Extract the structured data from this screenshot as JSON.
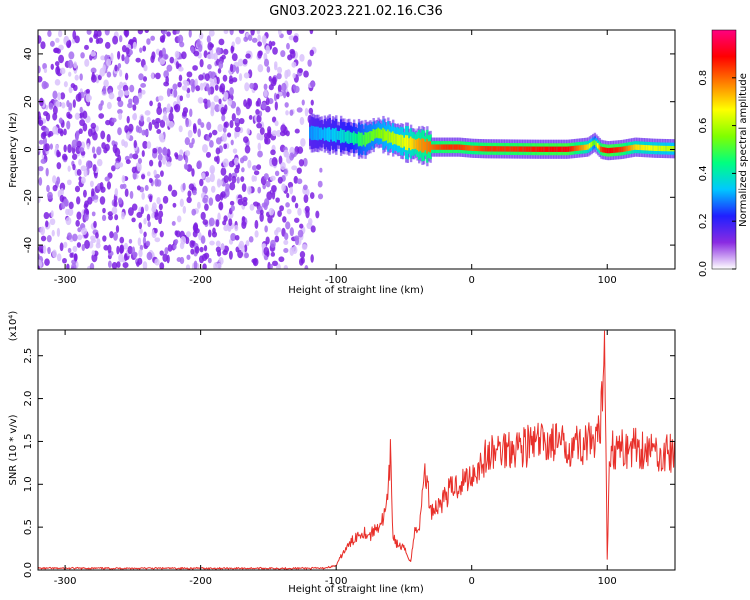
{
  "figure": {
    "title": "GN03.2023.221.02.16.C36"
  },
  "chart_data": [
    {
      "type": "heatmap",
      "title": "GN03.2023.221.02.16.C36",
      "xlabel": "Height of straight line (km)",
      "ylabel": "Frequency (Hz)",
      "xlim": [
        -320,
        150
      ],
      "ylim": [
        -50,
        50
      ],
      "x_ticks": [
        -300,
        -200,
        -100,
        0,
        100
      ],
      "x_tick_labels": [
        "-300",
        "-200",
        "-100",
        "0",
        "100"
      ],
      "y_ticks": [
        -40,
        -20,
        0,
        20,
        40
      ],
      "y_tick_labels": [
        "-40",
        "-20",
        "0",
        "20",
        "40"
      ],
      "noise_region_x": [
        -320,
        -110
      ],
      "signal_band": {
        "x": [
          -120,
          -100,
          -90,
          -80,
          -70,
          -60,
          -50,
          -40,
          -30,
          -20,
          -10,
          0,
          10,
          30,
          50,
          70,
          85,
          90,
          95,
          100,
          110,
          120,
          135,
          150
        ],
        "center_freq": [
          7,
          6,
          5,
          4,
          7,
          5,
          3,
          2,
          1,
          1,
          1,
          0.5,
          0.3,
          0.2,
          0.1,
          0.1,
          1,
          3,
          0,
          -0.5,
          0,
          1,
          0.5,
          0.3
        ],
        "relative_amplitude": [
          0.3,
          0.35,
          0.4,
          0.5,
          0.55,
          0.6,
          0.65,
          0.75,
          0.8,
          0.85,
          0.85,
          0.8,
          0.85,
          0.85,
          0.88,
          0.9,
          0.7,
          0.5,
          0.85,
          0.9,
          0.85,
          0.7,
          0.65,
          0.6
        ]
      },
      "colorbar": {
        "label": "Normalized spectral amplitude",
        "range": [
          0.0,
          1.0
        ],
        "ticks": [
          0.0,
          0.2,
          0.4,
          0.6,
          0.8
        ],
        "tick_labels": [
          "0.0",
          "0.2",
          "0.4",
          "0.6",
          "0.8"
        ],
        "colors": [
          "#ffffff",
          "#8a2be2",
          "#2020ff",
          "#00c8ff",
          "#00ff80",
          "#80ff00",
          "#ffff00",
          "#ff8000",
          "#ff0000",
          "#ff0080"
        ]
      }
    },
    {
      "type": "line",
      "xlabel": "Height of straight line (km)",
      "ylabel": "SNR (10 * v/v)",
      "y_multiplier_label": "(x10⁴)",
      "xlim": [
        -320,
        150
      ],
      "ylim": [
        0,
        2.8
      ],
      "x_ticks": [
        -300,
        -200,
        -100,
        0,
        100
      ],
      "x_tick_labels": [
        "-300",
        "-200",
        "-100",
        "0",
        "100"
      ],
      "y_ticks": [
        0,
        0.5,
        1.0,
        1.5,
        2.0,
        2.5
      ],
      "y_tick_labels": [
        "0.0",
        "0.5",
        "1.0",
        "1.5",
        "2.0",
        "2.5"
      ],
      "grid": false,
      "series": [
        {
          "color": "#e8302a",
          "x": [
            -320,
            -300,
            -250,
            -200,
            -150,
            -110,
            -100,
            -95,
            -90,
            -85,
            -80,
            -75,
            -70,
            -65,
            -62,
            -60,
            -58,
            -55,
            -50,
            -45,
            -42,
            -38,
            -35,
            -30,
            -25,
            -20,
            -15,
            -10,
            -5,
            0,
            5,
            10,
            15,
            20,
            30,
            40,
            50,
            60,
            70,
            75,
            80,
            85,
            90,
            95,
            98,
            100,
            102,
            105,
            110,
            115,
            120,
            130,
            140,
            150
          ],
          "y": [
            0.02,
            0.02,
            0.02,
            0.02,
            0.02,
            0.02,
            0.05,
            0.2,
            0.3,
            0.4,
            0.45,
            0.4,
            0.5,
            0.6,
            0.8,
            1.3,
            0.4,
            0.3,
            0.25,
            0.1,
            0.45,
            0.55,
            1.2,
            0.7,
            0.75,
            0.85,
            0.95,
            1.0,
            1.05,
            1.12,
            1.2,
            1.3,
            1.35,
            1.4,
            1.45,
            1.45,
            1.48,
            1.5,
            1.42,
            1.5,
            1.45,
            1.5,
            1.4,
            1.6,
            2.8,
            0.15,
            1.45,
            1.4,
            1.4,
            1.42,
            1.45,
            1.4,
            1.36,
            1.35
          ]
        }
      ]
    }
  ]
}
